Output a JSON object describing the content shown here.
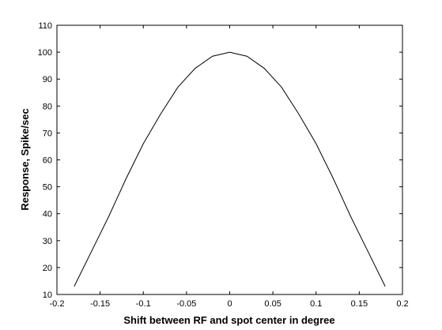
{
  "chart_data": {
    "type": "line",
    "xlabel": "Shift between RF and spot center in degree",
    "ylabel": "Response, Spike/sec",
    "x": [
      -0.18,
      -0.16,
      -0.14,
      -0.12,
      -0.1,
      -0.08,
      -0.06,
      -0.04,
      -0.02,
      0,
      0.02,
      0.04,
      0.06,
      0.08,
      0.1,
      0.12,
      0.14,
      0.16,
      0.18
    ],
    "series": [
      {
        "color": "#000000",
        "values": [
          13,
          26,
          39,
          53,
          66,
          77,
          87,
          94,
          98.5,
          100,
          98.5,
          94,
          87,
          77,
          66,
          53,
          39,
          26,
          13
        ]
      }
    ],
    "xlim": [
      -0.2,
      0.2
    ],
    "xticks": [
      -0.2,
      -0.15,
      -0.1,
      -0.05,
      0,
      0.05,
      0.1,
      0.15,
      0.2
    ],
    "ylim": [
      10,
      110
    ],
    "yticks": [
      10,
      20,
      30,
      40,
      50,
      60,
      70,
      80,
      90,
      100,
      110
    ]
  }
}
